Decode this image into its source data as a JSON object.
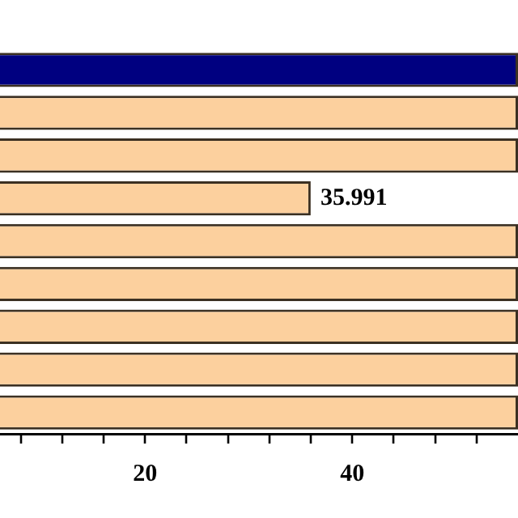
{
  "chart_data": {
    "type": "bar",
    "orientation": "horizontal",
    "categories": [
      null,
      null,
      null,
      null,
      null,
      null,
      null,
      null,
      null
    ],
    "values": [
      56,
      56,
      56,
      35.991,
      56,
      56,
      56,
      56,
      56
    ],
    "colors": [
      "#000080",
      "#fcd09e",
      "#fcd09e",
      "#fcd09e",
      "#fcd09e",
      "#fcd09e",
      "#fcd09e",
      "#fcd09e",
      "#fcd09e"
    ],
    "value_labels": [
      null,
      null,
      null,
      "35.991",
      null,
      null,
      null,
      null,
      null
    ],
    "xlim": [
      6,
      56
    ],
    "xticks": [
      {
        "value": 8,
        "label": null
      },
      {
        "value": 12,
        "label": null
      },
      {
        "value": 16,
        "label": null
      },
      20,
      {
        "value": 24,
        "label": null
      },
      {
        "value": 28,
        "label": null
      },
      {
        "value": 32,
        "label": null
      },
      {
        "value": 36,
        "label": null
      },
      40,
      {
        "value": 44,
        "label": null
      },
      {
        "value": 48,
        "label": null
      },
      {
        "value": 52,
        "label": null
      }
    ],
    "grid": false,
    "legend": false
  }
}
